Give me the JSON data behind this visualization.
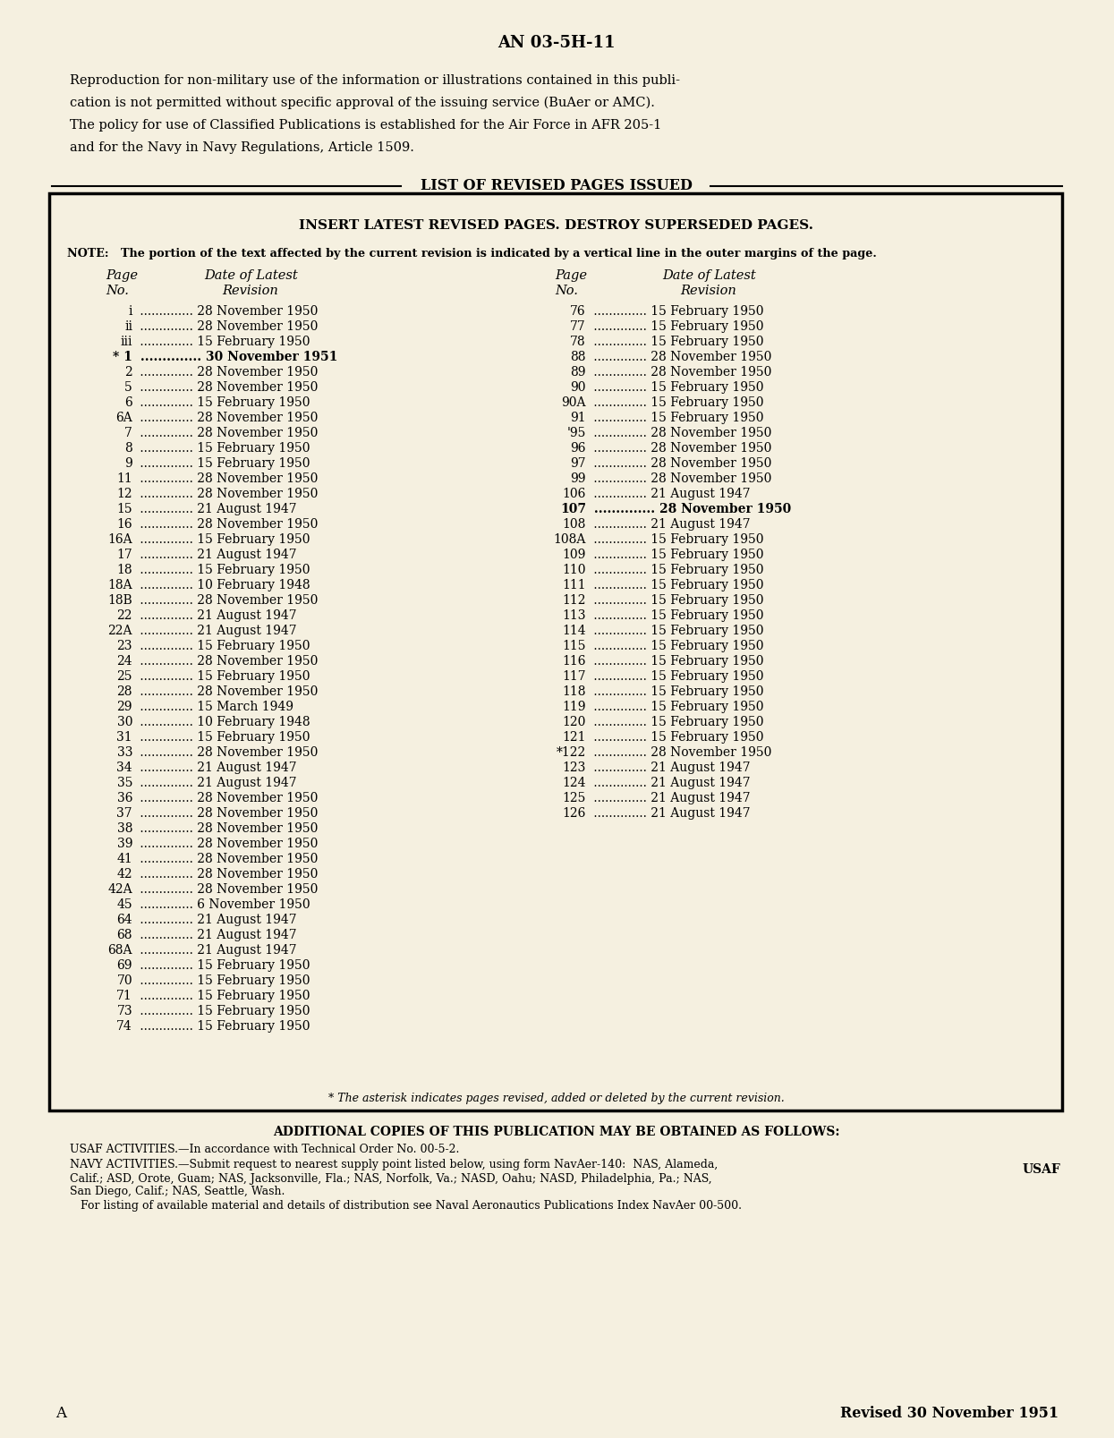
{
  "bg_color": "#f2edd8",
  "page_color": "#f5f0e0",
  "title": "AN 03-5H-11",
  "intro_lines": [
    "Reproduction for non-military use of the information or illustrations contained in this publi-",
    "cation is not permitted without specific approval of the issuing service (BuAer or AMC).",
    "The policy for use of Classified Publications is established for the Air Force in AFR 205-1",
    "and for the Navy in Navy Regulations, Article 1509."
  ],
  "box_title": "LIST OF REVISED PAGES ISSUED",
  "box_subtitle": "INSERT LATEST REVISED PAGES. DESTROY SUPERSEDED PAGES.",
  "note_text": "NOTE:   The portion of the text affected by the current revision is indicated by a vertical line in the outer margins of the page.",
  "left_entries": [
    [
      "i",
      "28 November 1950",
      ""
    ],
    [
      "ii",
      "28 November 1950",
      ""
    ],
    [
      "iii",
      "15 February 1950",
      ""
    ],
    [
      "* 1",
      "30 November 1951",
      "bold"
    ],
    [
      "2",
      "28 November 1950",
      ""
    ],
    [
      "5",
      "28 November 1950",
      ""
    ],
    [
      "6",
      "15 February 1950",
      ""
    ],
    [
      "6A",
      "28 November 1950",
      ""
    ],
    [
      "7",
      "28 November 1950",
      ""
    ],
    [
      "8",
      "15 February 1950",
      ""
    ],
    [
      "9",
      "15 February 1950",
      ""
    ],
    [
      "11",
      "28 November 1950",
      ""
    ],
    [
      "12",
      "28 November 1950",
      ""
    ],
    [
      "15",
      "21 August 1947",
      ""
    ],
    [
      "16",
      "28 November 1950",
      ""
    ],
    [
      "16A",
      "15 February 1950",
      ""
    ],
    [
      "17",
      "21 August 1947",
      ""
    ],
    [
      "18",
      "15 February 1950",
      ""
    ],
    [
      "18A",
      "10 February 1948",
      ""
    ],
    [
      "18B",
      "28 November 1950",
      ""
    ],
    [
      "22",
      "21 August 1947",
      ""
    ],
    [
      "22A",
      "21 August 1947",
      ""
    ],
    [
      "23",
      "15 February 1950",
      ""
    ],
    [
      "24",
      "28 November 1950",
      ""
    ],
    [
      "25",
      "15 February 1950",
      ""
    ],
    [
      "28",
      "28 November 1950",
      ""
    ],
    [
      "29",
      "15 March 1949",
      ""
    ],
    [
      "30",
      "10 February 1948",
      ""
    ],
    [
      "31",
      "15 February 1950",
      ""
    ],
    [
      "33",
      "28 November 1950",
      ""
    ],
    [
      "34",
      "21 August 1947",
      ""
    ],
    [
      "35",
      "21 August 1947",
      ""
    ],
    [
      "36",
      "28 November 1950",
      ""
    ],
    [
      "37",
      "28 November 1950",
      ""
    ],
    [
      "38",
      "28 November 1950",
      ""
    ],
    [
      "39",
      "28 November 1950",
      ""
    ],
    [
      "41",
      "28 November 1950",
      ""
    ],
    [
      "42",
      "28 November 1950",
      ""
    ],
    [
      "42A",
      "28 November 1950",
      ""
    ],
    [
      "45",
      "6 November 1950",
      ""
    ],
    [
      "64",
      "21 August 1947",
      ""
    ],
    [
      "68",
      "21 August 1947",
      ""
    ],
    [
      "68A",
      "21 August 1947",
      ""
    ],
    [
      "69",
      "15 February 1950",
      ""
    ],
    [
      "70",
      "15 February 1950",
      ""
    ],
    [
      "71",
      "15 February 1950",
      ""
    ],
    [
      "73",
      "15 February 1950",
      ""
    ],
    [
      "74",
      "15 February 1950",
      ""
    ]
  ],
  "right_entries": [
    [
      "76",
      "15 February 1950",
      ""
    ],
    [
      "77",
      "15 February 1950",
      ""
    ],
    [
      "78",
      "15 February 1950",
      ""
    ],
    [
      "88",
      "28 November 1950",
      ""
    ],
    [
      "89",
      "28 November 1950",
      ""
    ],
    [
      "90",
      "15 February 1950",
      ""
    ],
    [
      "90A",
      "15 February 1950",
      ""
    ],
    [
      "91",
      "15 February 1950",
      ""
    ],
    [
      "'95",
      "28 November 1950",
      ""
    ],
    [
      "96",
      "28 November 1950",
      ""
    ],
    [
      "97",
      "28 November 1950",
      ""
    ],
    [
      "99",
      "28 November 1950",
      ""
    ],
    [
      "106",
      "21 August 1947",
      ""
    ],
    [
      "107",
      "28 November 1950",
      "bold"
    ],
    [
      "108",
      "21 August 1947",
      ""
    ],
    [
      "108A",
      "15 February 1950",
      ""
    ],
    [
      "109",
      "15 February 1950",
      ""
    ],
    [
      "110",
      "15 February 1950",
      ""
    ],
    [
      "111",
      "15 February 1950",
      ""
    ],
    [
      "112",
      "15 February 1950",
      ""
    ],
    [
      "113",
      "15 February 1950",
      ""
    ],
    [
      "114",
      "15 February 1950",
      ""
    ],
    [
      "115",
      "15 February 1950",
      ""
    ],
    [
      "116",
      "15 February 1950",
      ""
    ],
    [
      "117",
      "15 February 1950",
      ""
    ],
    [
      "118",
      "15 February 1950",
      ""
    ],
    [
      "119",
      "15 February 1950",
      ""
    ],
    [
      "120",
      "15 February 1950",
      ""
    ],
    [
      "121",
      "15 February 1950",
      ""
    ],
    [
      "*122",
      "28 November 1950",
      ""
    ],
    [
      "123",
      "21 August 1947",
      ""
    ],
    [
      "124",
      "21 August 1947",
      ""
    ],
    [
      "125",
      "21 August 1947",
      ""
    ],
    [
      "126",
      "21 August 1947",
      ""
    ]
  ],
  "asterisk_note": "* The asterisk indicates pages revised, added or deleted by the current revision.",
  "additional_copies": "ADDITIONAL COPIES OF THIS PUBLICATION MAY BE OBTAINED AS FOLLOWS:",
  "usaf_line": "USAF ACTIVITIES.—In accordance with Technical Order No. 00-5-2.",
  "navy_lines": [
    "NAVY ACTIVITIES.—Submit request to nearest supply point listed below, using form NavAer-140:  NAS, Alameda,",
    "Calif.; ASD, Orote, Guam; NAS, Jacksonville, Fla.; NAS, Norfolk, Va.; NASD, Oahu; NASD, Philadelphia, Pa.; NAS,",
    "San Diego, Calif.; NAS, Seattle, Wash.",
    "   For listing of available material and details of distribution see Naval Aeronautics Publications Index NavAer 00-500."
  ],
  "usaf_label": "USAF",
  "bottom_left": "A",
  "bottom_right": "Revised 30 November 1951"
}
